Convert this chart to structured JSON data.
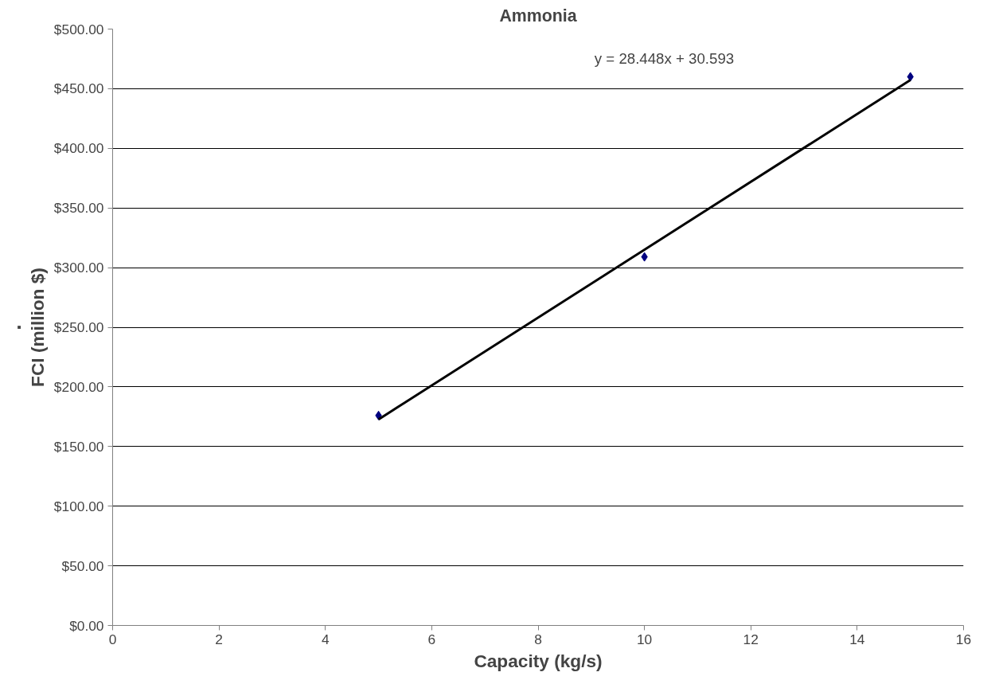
{
  "chart_data": {
    "type": "scatter",
    "title": "Ammonia",
    "xlabel": "Capacity (kg/s)",
    "ylabel": "FCI (million $)",
    "annotations": [
      "y = 28.448x + 30.593",
      "."
    ],
    "x": [
      5,
      10,
      15
    ],
    "series": [
      {
        "color": "#000080",
        "values": [
          176,
          309,
          460
        ],
        "marker": "diamond"
      },
      {
        "type": "line",
        "color": "#000000",
        "x": [
          5,
          15
        ],
        "values": [
          172.8,
          457.3
        ],
        "line_style": "solid"
      }
    ],
    "xlim": [
      0,
      16
    ],
    "xticks": [
      0,
      2,
      4,
      6,
      8,
      10,
      12,
      14,
      16
    ],
    "ylim": [
      0,
      500
    ],
    "yticks": [
      {
        "value": 0,
        "label": "$0.00"
      },
      {
        "value": 50,
        "label": "$50.00"
      },
      {
        "value": 100,
        "label": "$100.00"
      },
      {
        "value": 150,
        "label": "$150.00"
      },
      {
        "value": 200,
        "label": "$200.00"
      },
      {
        "value": 250,
        "label": "$250.00"
      },
      {
        "value": 300,
        "label": "$300.00"
      },
      {
        "value": 350,
        "label": "$350.00"
      },
      {
        "value": 400,
        "label": "$400.00"
      },
      {
        "value": 450,
        "label": "$450.00"
      },
      {
        "value": 500,
        "label": "$500.00"
      }
    ],
    "grid": "y"
  }
}
